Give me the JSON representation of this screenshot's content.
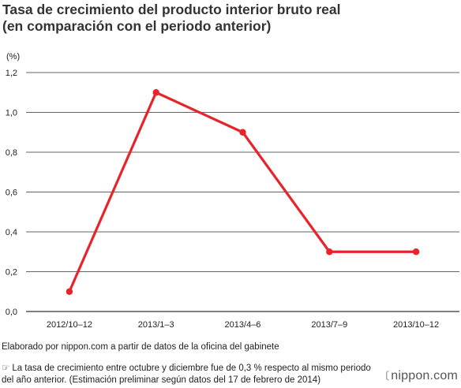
{
  "title_line1": "Tasa de crecimiento del producto interior bruto real",
  "title_line2": "(en comparación con el periodo anterior)",
  "chart_data": {
    "type": "line",
    "categories": [
      "2012/10–12",
      "2013/1–3",
      "2013/4–6",
      "2013/7–9",
      "2013/10–12"
    ],
    "series": [
      {
        "values": [
          0.1,
          1.1,
          0.9,
          0.3,
          0.3
        ]
      }
    ],
    "y_unit_label": "(%)",
    "ylim": [
      0,
      1.2
    ],
    "y_ticks": [
      "0,0",
      "0,2",
      "0,4",
      "0,6",
      "0,8",
      "1,0",
      "1,2"
    ],
    "grid": true,
    "line_color": "#e8242b",
    "grid_color": "#333333"
  },
  "source": "Elaborado por nippon.com a partir de datos de la oficina del gabinete",
  "note_icon": "pointing-hand-icon",
  "note": "La tasa de crecimiento entre octubre y diciembre fue de 0,3 % respecto al mismo periodo del año anterior. (Estimación preliminar según datos del 17 de febrero de 2014)",
  "logo_text": "nippon.com",
  "logo_mark": "〔"
}
